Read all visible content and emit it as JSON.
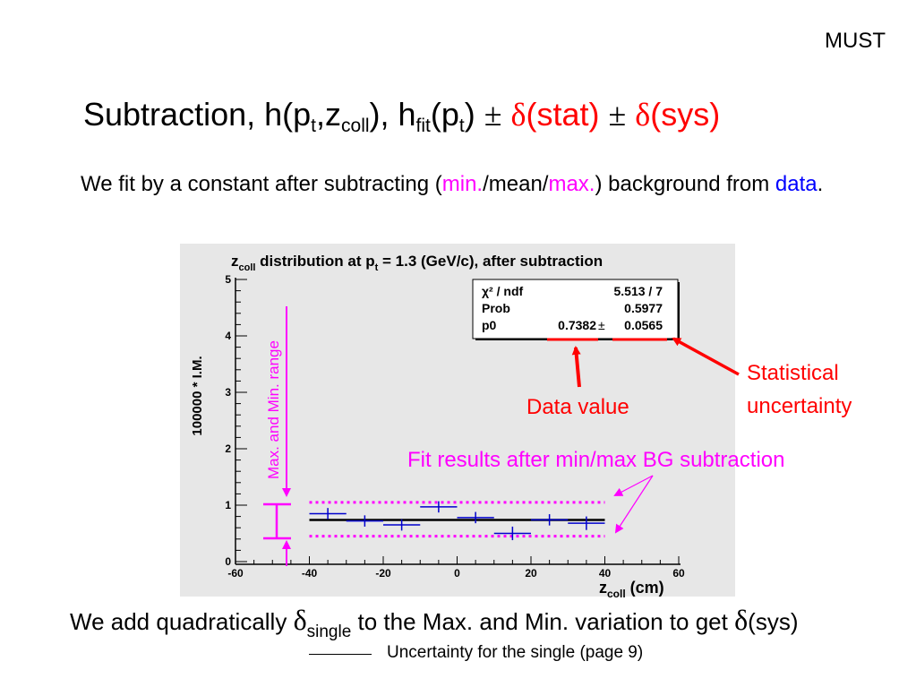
{
  "header": {
    "corner_label": "MUST"
  },
  "title": {
    "text_a": "Subtraction, h(p",
    "sub_t1": "t",
    "text_b": ",z",
    "sub_coll": "coll",
    "text_c": "),  h",
    "sub_fit": "fit",
    "text_d": "(p",
    "sub_t2": "t",
    "text_e": ") ",
    "pm1": "±",
    "delta1": "δ",
    "stat": "(stat) ",
    "pm2": "±",
    "delta2": "δ",
    "sys": "(sys)"
  },
  "intro": {
    "part1": "We fit by a constant after subtracting (",
    "min": "min.",
    "mid": "/mean/",
    "max": "max.",
    "part2": ") background from ",
    "data_word": "data",
    "period": "."
  },
  "plot": {
    "title_pre": "z",
    "title_sub": "coll",
    "title_mid": " distribution at p",
    "title_sub2": "t",
    "title_post": " = 1.3 (GeV/c), after subtraction",
    "ylabel": "100000 * I.M.",
    "xlabel_pre": "z",
    "xlabel_sub": "coll",
    "xlabel_post": " (cm)",
    "x_ticks": [
      "-60",
      "-40",
      "-20",
      "0",
      "20",
      "40",
      "60"
    ],
    "y_ticks": [
      "0",
      "1",
      "2",
      "3",
      "4",
      "5"
    ],
    "stats": {
      "row1_label": "χ² / ndf",
      "row1_value": "5.513 / 7",
      "row2_label": "Prob",
      "row2_value": "0.5977",
      "row3_label": "p0",
      "row3_value": "0.7382",
      "row3_pm": "±",
      "row3_err": "0.0565"
    },
    "range_label": "Max. and Min. range"
  },
  "annotations": {
    "data_value": "Data value",
    "stat_unc_1": "Statistical",
    "stat_unc_2": "uncertainty",
    "fit_results": "Fit results after min/max BG subtraction"
  },
  "chart_data": {
    "type": "scatter",
    "title": "zcoll distribution at pt = 1.3 (GeV/c), after subtraction",
    "xlabel": "zcoll (cm)",
    "ylabel": "100000 * I.M.",
    "xlim": [
      -60,
      60
    ],
    "ylim": [
      0,
      5
    ],
    "series": [
      {
        "x": [
          -35,
          -25,
          -15,
          -5,
          5,
          15,
          25,
          35
        ],
        "y": [
          0.85,
          0.72,
          0.65,
          0.97,
          0.78,
          0.5,
          0.74,
          0.68
        ],
        "xerr": [
          5,
          5,
          5,
          5,
          5,
          5,
          5,
          5
        ],
        "yerr": [
          0.1,
          0.1,
          0.1,
          0.1,
          0.1,
          0.12,
          0.1,
          0.12
        ]
      }
    ],
    "fit_line_y": 0.7382,
    "max_bg_fit_y": 1.05,
    "min_bg_fit_y": 0.45,
    "colors": {
      "points": "#0000cc",
      "fit": "#000000",
      "range": "#ff00ff",
      "arrows": "#ff0000"
    }
  },
  "bottom": {
    "text1": "We add quadratically ",
    "delta": "δ",
    "sub_single": "single",
    "text2": " to the Max. and Min. variation to get ",
    "delta2": "δ",
    "text3": "(sys)"
  },
  "footnote": "Uncertainty for the single (page 9)"
}
